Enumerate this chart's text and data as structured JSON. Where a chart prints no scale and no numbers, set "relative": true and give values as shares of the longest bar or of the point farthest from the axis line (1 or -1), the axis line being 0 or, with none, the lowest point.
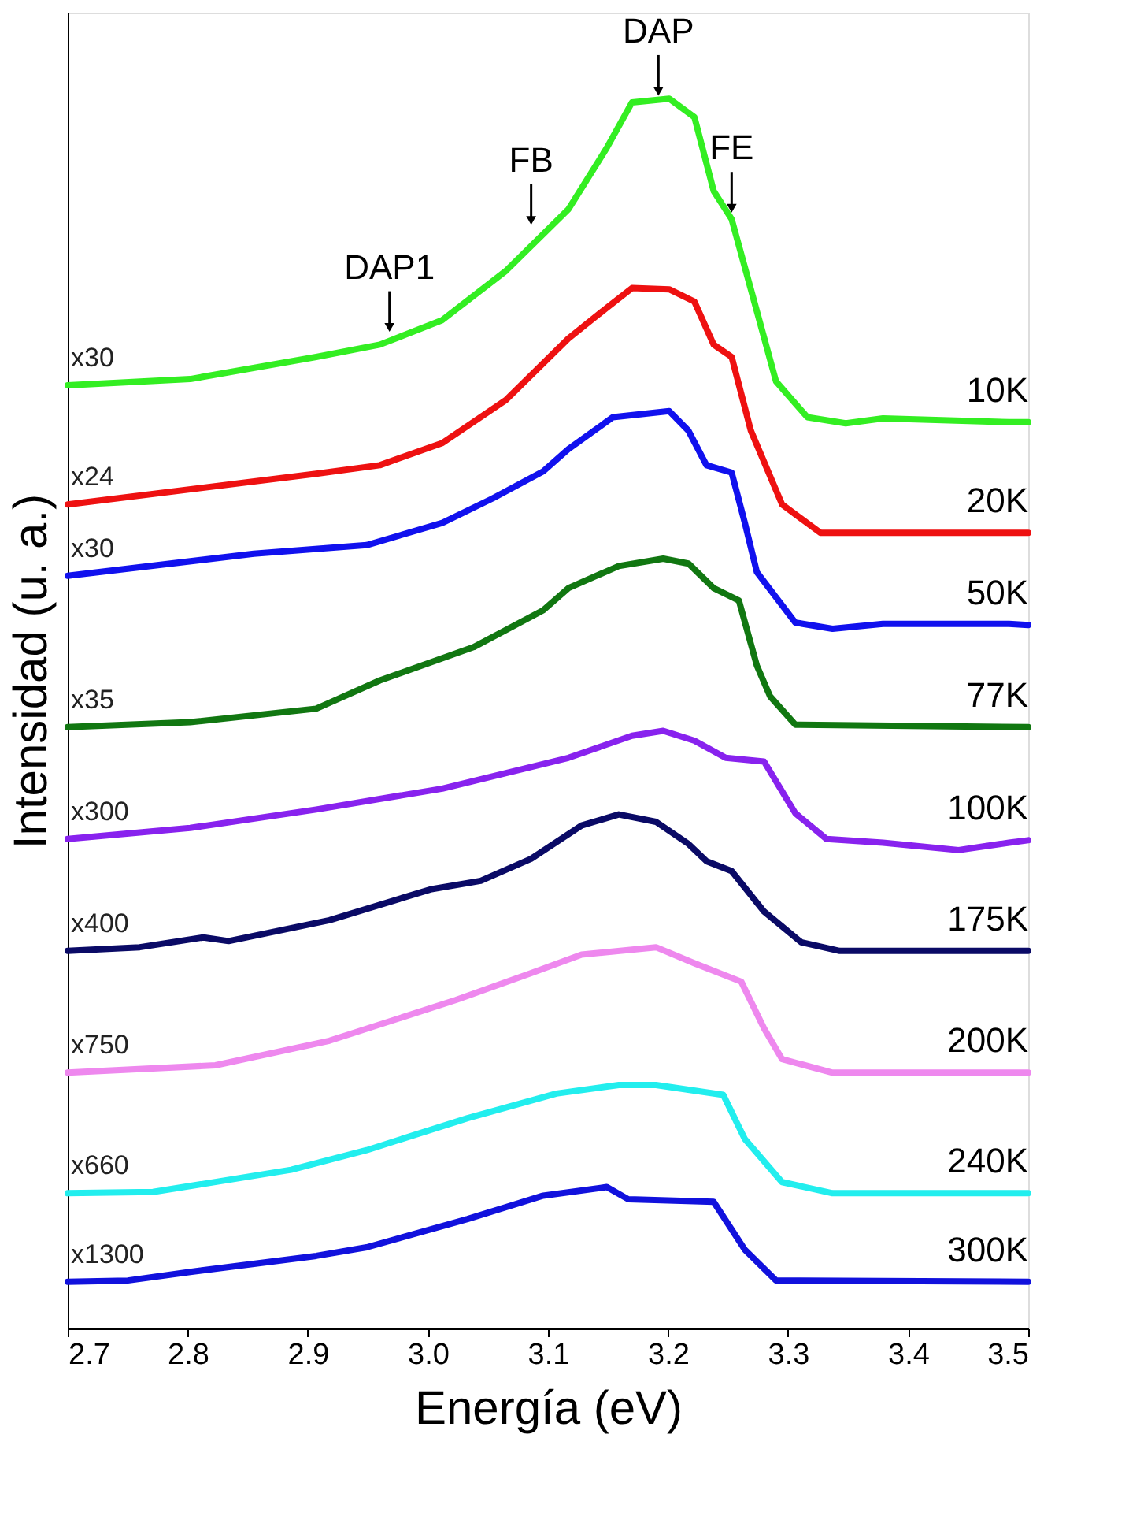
{
  "chart_data": {
    "type": "line",
    "relative": true,
    "xlabel": "Energía (eV)",
    "ylabel": "Intensidad (u. a.)",
    "xlim": [
      2.7,
      3.5
    ],
    "xticks": [
      2.7,
      2.8,
      2.9,
      {
        "value": 3,
        "label": "3.0"
      },
      3.1,
      3.2,
      3.3,
      3.4,
      3.5
    ],
    "grid": false,
    "marker": "none",
    "line_style": "solid",
    "series": [
      {
        "name": "10K",
        "color": "#33ee22",
        "x": [
          2.7,
          2.802,
          2.907,
          2.96,
          3.012,
          3.065,
          3.117,
          3.149,
          3.17,
          3.201,
          3.222,
          3.238,
          3.253,
          3.269,
          3.29,
          3.316,
          3.348,
          3.379,
          3.484,
          3.5
        ],
        "values": [
          0.767,
          0.772,
          0.79,
          0.8,
          0.82,
          0.86,
          0.91,
          0.96,
          0.997,
          1.0,
          0.985,
          0.925,
          0.902,
          0.845,
          0.77,
          0.741,
          0.736,
          0.74,
          0.737,
          0.737
        ]
      },
      {
        "name": "20K",
        "color": "#ee1111",
        "x": [
          2.7,
          2.907,
          2.96,
          3.012,
          3.065,
          3.117,
          3.149,
          3.17,
          3.201,
          3.222,
          3.238,
          3.253,
          3.269,
          3.295,
          3.327,
          3.5
        ],
        "values": [
          0.67,
          0.695,
          0.702,
          0.72,
          0.755,
          0.805,
          0.83,
          0.846,
          0.845,
          0.835,
          0.8,
          0.79,
          0.73,
          0.67,
          0.647,
          0.647
        ]
      },
      {
        "name": "50K",
        "color": "#1111ee",
        "x": [
          2.7,
          2.855,
          2.949,
          3.012,
          3.054,
          3.096,
          3.117,
          3.154,
          3.201,
          3.217,
          3.232,
          3.253,
          3.264,
          3.274,
          3.306,
          3.337,
          3.379,
          3.484,
          3.5
        ],
        "values": [
          0.612,
          0.63,
          0.637,
          0.655,
          0.675,
          0.697,
          0.715,
          0.741,
          0.746,
          0.73,
          0.702,
          0.696,
          0.655,
          0.615,
          0.574,
          0.569,
          0.573,
          0.573,
          0.572
        ]
      },
      {
        "name": "77K",
        "color": "#117711",
        "x": [
          2.7,
          2.802,
          2.907,
          2.96,
          3.038,
          3.096,
          3.117,
          3.159,
          3.196,
          3.217,
          3.238,
          3.259,
          3.274,
          3.285,
          3.306,
          3.5
        ],
        "values": [
          0.489,
          0.493,
          0.504,
          0.527,
          0.554,
          0.584,
          0.602,
          0.62,
          0.626,
          0.622,
          0.602,
          0.592,
          0.539,
          0.514,
          0.491,
          0.489
        ]
      },
      {
        "name": "100K",
        "color": "#8822ee",
        "x": [
          2.7,
          2.802,
          2.907,
          3.012,
          3.117,
          3.17,
          3.196,
          3.222,
          3.248,
          3.28,
          3.306,
          3.332,
          3.379,
          3.442,
          3.484,
          3.5
        ],
        "values": [
          0.398,
          0.407,
          0.422,
          0.439,
          0.464,
          0.482,
          0.486,
          0.478,
          0.464,
          0.461,
          0.419,
          0.398,
          0.395,
          0.389,
          0.395,
          0.397
        ]
      },
      {
        "name": "175K",
        "color": "#0a0a66",
        "x": [
          2.7,
          2.76,
          2.813,
          2.834,
          2.918,
          3.002,
          3.044,
          3.086,
          3.128,
          3.159,
          3.19,
          3.217,
          3.232,
          3.253,
          3.28,
          3.311,
          3.343,
          3.5
        ],
        "values": [
          0.307,
          0.31,
          0.318,
          0.315,
          0.332,
          0.357,
          0.364,
          0.382,
          0.409,
          0.418,
          0.412,
          0.394,
          0.38,
          0.372,
          0.339,
          0.314,
          0.307,
          0.307
        ]
      },
      {
        "name": "200K",
        "color": "#ee88ee",
        "x": [
          2.7,
          2.823,
          2.918,
          3.023,
          3.086,
          3.128,
          3.19,
          3.222,
          3.261,
          3.28,
          3.295,
          3.337,
          3.5
        ],
        "values": [
          0.208,
          0.214,
          0.234,
          0.267,
          0.289,
          0.304,
          0.31,
          0.297,
          0.282,
          0.244,
          0.219,
          0.208,
          0.208
        ]
      },
      {
        "name": "240K",
        "color": "#22eeee",
        "x": [
          2.7,
          2.771,
          2.886,
          2.949,
          3.033,
          3.107,
          3.159,
          3.19,
          3.246,
          3.264,
          3.295,
          3.337,
          3.5
        ],
        "values": [
          0.11,
          0.111,
          0.129,
          0.145,
          0.171,
          0.191,
          0.198,
          0.198,
          0.19,
          0.154,
          0.119,
          0.11,
          0.11
        ]
      },
      {
        "name": "300K",
        "color": "#1111dd",
        "x": [
          2.7,
          2.75,
          2.802,
          2.907,
          2.949,
          3.033,
          3.096,
          3.149,
          3.167,
          3.238,
          3.264,
          3.29,
          3.5
        ],
        "values": [
          0.038,
          0.039,
          0.046,
          0.059,
          0.066,
          0.089,
          0.108,
          0.115,
          0.105,
          0.103,
          0.064,
          0.039,
          0.038
        ]
      }
    ],
    "annotations": [
      {
        "text": "x30",
        "x": 2.7,
        "y": 0.767
      },
      {
        "text": "x24",
        "x": 2.7,
        "y": 0.67
      },
      {
        "text": "x30",
        "x": 2.7,
        "y": 0.612
      },
      {
        "text": "x35",
        "x": 2.7,
        "y": 0.489
      },
      {
        "text": "x300",
        "x": 2.7,
        "y": 0.398
      },
      {
        "text": "x400",
        "x": 2.7,
        "y": 0.307
      },
      {
        "text": "x750",
        "x": 2.7,
        "y": 0.208
      },
      {
        "text": "x660",
        "x": 2.7,
        "y": 0.11
      },
      {
        "text": "x1300",
        "x": 2.7,
        "y": 0.038
      },
      {
        "text": "DAP1",
        "x": 2.968,
        "y": 0.805
      },
      {
        "text": "FB",
        "x": 3.086,
        "y": 0.892
      },
      {
        "text": "DAP",
        "x": 3.192,
        "y": 0.997
      },
      {
        "text": "FE",
        "x": 3.253,
        "y": 0.902
      }
    ]
  }
}
